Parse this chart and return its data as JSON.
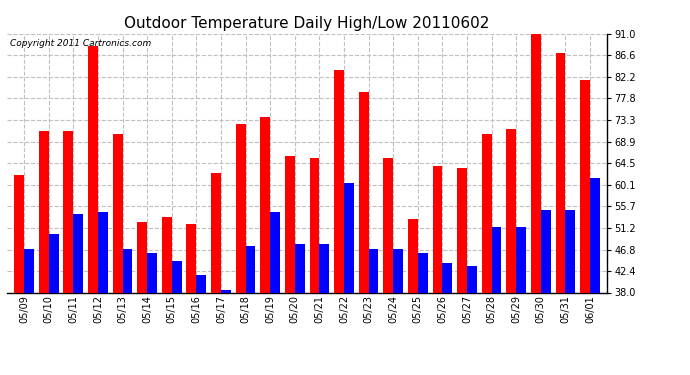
{
  "title": "Outdoor Temperature Daily High/Low 20110602",
  "copyright": "Copyright 2011 Cartronics.com",
  "dates": [
    "05/09",
    "05/10",
    "05/11",
    "05/12",
    "05/13",
    "05/14",
    "05/15",
    "05/16",
    "05/17",
    "05/18",
    "05/19",
    "05/20",
    "05/21",
    "05/22",
    "05/23",
    "05/24",
    "05/25",
    "05/26",
    "05/27",
    "05/28",
    "05/29",
    "05/30",
    "05/31",
    "06/01"
  ],
  "highs": [
    62.0,
    71.0,
    71.0,
    88.5,
    70.5,
    52.5,
    53.5,
    52.0,
    62.5,
    72.5,
    74.0,
    66.0,
    65.5,
    83.5,
    79.0,
    65.5,
    53.0,
    64.0,
    63.5,
    70.5,
    71.5,
    91.0,
    87.0,
    81.5
  ],
  "lows": [
    47.0,
    50.0,
    54.0,
    54.5,
    47.0,
    46.0,
    44.5,
    41.5,
    38.5,
    47.5,
    54.5,
    48.0,
    48.0,
    60.5,
    47.0,
    47.0,
    46.0,
    44.0,
    43.5,
    51.5,
    51.5,
    55.0,
    55.0,
    61.5
  ],
  "high_color": "#ff0000",
  "low_color": "#0000ff",
  "bar_width": 0.4,
  "ylim": [
    38.0,
    91.0
  ],
  "yticks": [
    38.0,
    42.4,
    46.8,
    51.2,
    55.7,
    60.1,
    64.5,
    68.9,
    73.3,
    77.8,
    82.2,
    86.6,
    91.0
  ],
  "ytick_labels": [
    "38.0",
    "42.4",
    "46.8",
    "51.2",
    "55.7",
    "60.1",
    "64.5",
    "68.9",
    "73.3",
    "77.8",
    "82.2",
    "86.6",
    "91.0"
  ],
  "background_color": "#ffffff",
  "grid_color": "#c0c0c0",
  "title_fontsize": 11,
  "tick_fontsize": 7,
  "copyright_fontsize": 6.5
}
